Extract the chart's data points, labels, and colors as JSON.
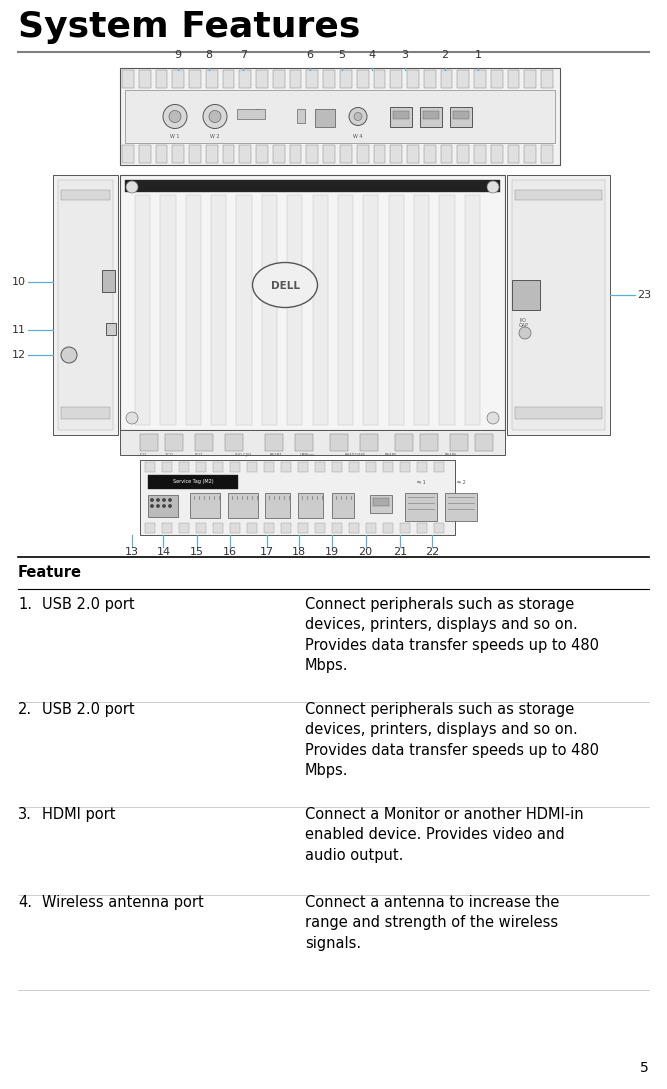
{
  "title": "System Features",
  "title_fontsize": 26,
  "title_fontweight": "bold",
  "background_color": "#ffffff",
  "title_line_color": "#808080",
  "table_header": "Feature",
  "table_header_fontsize": 10.5,
  "table_header_fontweight": "bold",
  "body_fontsize": 10.5,
  "features": [
    {
      "number": "1.",
      "name": "USB 2.0 port",
      "description": "Connect peripherals such as storage\ndevices, printers, displays and so on.\nProvides data transfer speeds up to 480\nMbps."
    },
    {
      "number": "2.",
      "name": "USB 2.0 port",
      "description": "Connect peripherals such as storage\ndevices, printers, displays and so on.\nProvides data transfer speeds up to 480\nMbps."
    },
    {
      "number": "3.",
      "name": "HDMI port",
      "description": "Connect a Monitor or another HDMI-in\nenabled device. Provides video and\naudio output."
    },
    {
      "number": "4.",
      "name": "Wireless antenna port",
      "description": "Connect a antenna to increase the\nrange and strength of the wireless\nsignals."
    }
  ],
  "page_number": "5",
  "page_number_fontsize": 10,
  "top_labels": [
    [
      "9",
      0.267
    ],
    [
      "8",
      0.313
    ],
    [
      "7",
      0.365
    ],
    [
      "6",
      0.465
    ],
    [
      "5",
      0.512
    ],
    [
      "4",
      0.558
    ],
    [
      "3",
      0.607
    ],
    [
      "2",
      0.667
    ],
    [
      "1",
      0.717
    ]
  ],
  "bot_labels": [
    [
      "13",
      0.198
    ],
    [
      "14",
      0.245
    ],
    [
      "15",
      0.295
    ],
    [
      "16",
      0.345
    ],
    [
      "17",
      0.4
    ],
    [
      "18",
      0.448
    ],
    [
      "19",
      0.498
    ],
    [
      "20",
      0.548
    ],
    [
      "21",
      0.6
    ],
    [
      "22",
      0.648
    ]
  ],
  "label_color": "#5baed4",
  "diagram_label_color": "#333333",
  "diagram_label_fontsize": 8.0
}
